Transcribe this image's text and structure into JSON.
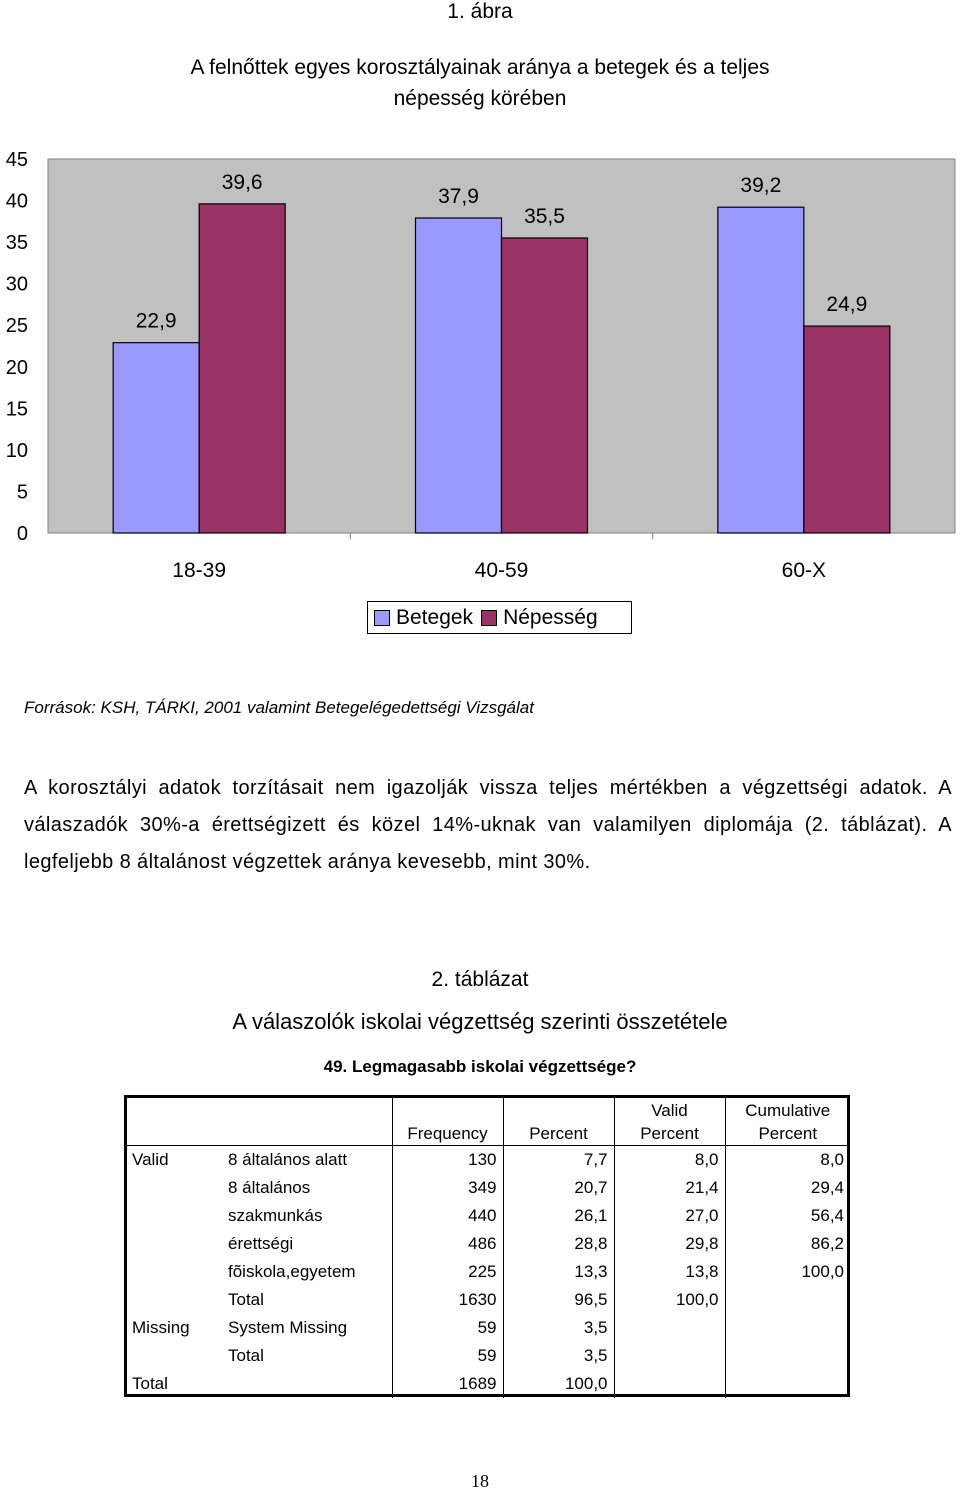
{
  "figure": {
    "label": "1.  ábra",
    "title_line1": "A felnőttek egyes korosztályainak aránya a betegek és a teljes",
    "title_line2": "népesség körében"
  },
  "chart_data": {
    "type": "bar",
    "categories": [
      "18-39",
      "40-59",
      "60-X"
    ],
    "series": [
      {
        "name": "Betegek",
        "values": [
          22.9,
          37.9,
          39.2
        ],
        "color": "#9999ff"
      },
      {
        "name": "Népesség",
        "values": [
          39.6,
          35.5,
          24.9
        ],
        "color": "#993366"
      }
    ],
    "data_labels": [
      [
        "22,9",
        "37,9",
        "39,2"
      ],
      [
        "39,6",
        "35,5",
        "24,9"
      ]
    ],
    "yticks": [
      "0",
      "5",
      "10",
      "15",
      "20",
      "25",
      "30",
      "35",
      "40",
      "45"
    ],
    "ylim": [
      0,
      45
    ],
    "plot_background": "#c0c0c0",
    "legend_position": "bottom"
  },
  "sources": "Források: KSH, TÁRKI, 2001 valamint Betegelégedettségi Vizsgálat",
  "paragraph": "A korosztályi adatok torzításait nem igazolják vissza teljes mértékben a végzettségi adatok. A válaszadók 30%-a érettségizett és közel 14%-uknak van valamilyen diplomája (2. táblázat). A legfeljebb 8 általánost végzettek aránya kevesebb, mint 30%.",
  "table_section": {
    "label": "2. táblázat",
    "title": "A válaszolók iskolai végzettség szerinti összetétele",
    "question": "49. Legmagasabb iskolai végzettsége?",
    "headers": {
      "frequency": "Frequency",
      "percent": "Percent",
      "valid_1": "Valid",
      "valid_2": "Percent",
      "cumulative_1": "Cumulative",
      "cumulative_2": "Percent"
    },
    "rows": [
      {
        "group": "Valid",
        "label": "8 általános alatt",
        "frequency": "130",
        "percent": "7,7",
        "valid_percent": "8,0",
        "cumulative_percent": "8,0"
      },
      {
        "group": "",
        "label": "8 általános",
        "frequency": "349",
        "percent": "20,7",
        "valid_percent": "21,4",
        "cumulative_percent": "29,4"
      },
      {
        "group": "",
        "label": "szakmunkás",
        "frequency": "440",
        "percent": "26,1",
        "valid_percent": "27,0",
        "cumulative_percent": "56,4"
      },
      {
        "group": "",
        "label": "érettségi",
        "frequency": "486",
        "percent": "28,8",
        "valid_percent": "29,8",
        "cumulative_percent": "86,2"
      },
      {
        "group": "",
        "label": "fõiskola,egyetem",
        "frequency": "225",
        "percent": "13,3",
        "valid_percent": "13,8",
        "cumulative_percent": "100,0"
      },
      {
        "group": "",
        "label": "Total",
        "frequency": "1630",
        "percent": "96,5",
        "valid_percent": "100,0",
        "cumulative_percent": ""
      },
      {
        "group": "Missing",
        "label": "System Missing",
        "frequency": "59",
        "percent": "3,5",
        "valid_percent": "",
        "cumulative_percent": ""
      },
      {
        "group": "",
        "label": "Total",
        "frequency": "59",
        "percent": "3,5",
        "valid_percent": "",
        "cumulative_percent": ""
      },
      {
        "group": "Total",
        "label": "",
        "frequency": "1689",
        "percent": "100,0",
        "valid_percent": "",
        "cumulative_percent": ""
      }
    ]
  },
  "page_number": "18"
}
